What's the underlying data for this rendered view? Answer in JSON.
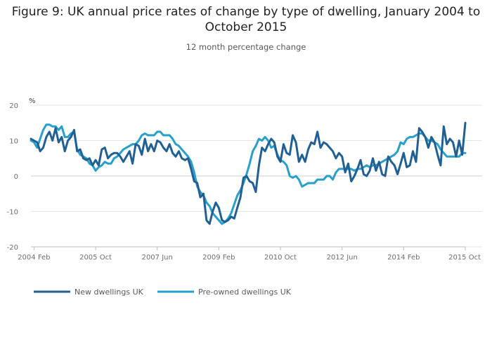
{
  "chart_data": {
    "type": "line",
    "title": "Figure 9: UK annual price rates of change by type of dwelling, January 2004 to October 2015",
    "subtitle": "12 month percentage change",
    "ylabel": "%",
    "xlabel": "",
    "ylim": [
      -20,
      20
    ],
    "yticks": [
      20,
      10,
      0,
      -10,
      -20
    ],
    "xlim": [
      2004.0,
      2015.75
    ],
    "xticks": [
      {
        "value": 2004.083,
        "label": "2004 Feb"
      },
      {
        "value": 2005.75,
        "label": "2005 Oct"
      },
      {
        "value": 2007.417,
        "label": "2007 Jun"
      },
      {
        "value": 2009.083,
        "label": "2009 Feb"
      },
      {
        "value": 2010.75,
        "label": "2010 Oct"
      },
      {
        "value": 2012.417,
        "label": "2012 Jun"
      },
      {
        "value": 2014.083,
        "label": "2014 Feb"
      },
      {
        "value": 2015.75,
        "label": "2015 Oct"
      }
    ],
    "grid": true,
    "legend": "bottom-left",
    "series": [
      {
        "name": "New dwellings UK",
        "color": "#206095",
        "points": [
          [
            2004.0,
            10.5
          ],
          [
            2004.167,
            9.5
          ],
          [
            2004.25,
            7.0
          ],
          [
            2004.333,
            8.0
          ],
          [
            2004.417,
            11.0
          ],
          [
            2004.5,
            12.5
          ],
          [
            2004.583,
            10.0
          ],
          [
            2004.667,
            13.5
          ],
          [
            2004.75,
            9.5
          ],
          [
            2004.833,
            11.0
          ],
          [
            2004.917,
            7.0
          ],
          [
            2005.0,
            10.0
          ],
          [
            2005.083,
            11.0
          ],
          [
            2005.167,
            13.0
          ],
          [
            2005.25,
            7.0
          ],
          [
            2005.333,
            7.5
          ],
          [
            2005.417,
            5.0
          ],
          [
            2005.5,
            4.5
          ],
          [
            2005.583,
            5.0
          ],
          [
            2005.667,
            3.0
          ],
          [
            2005.75,
            4.5
          ],
          [
            2005.833,
            3.0
          ],
          [
            2005.917,
            7.5
          ],
          [
            2006.0,
            8.0
          ],
          [
            2006.083,
            5.0
          ],
          [
            2006.167,
            6.0
          ],
          [
            2006.25,
            6.5
          ],
          [
            2006.333,
            6.5
          ],
          [
            2006.417,
            5.5
          ],
          [
            2006.5,
            4.0
          ],
          [
            2006.583,
            5.5
          ],
          [
            2006.667,
            7.0
          ],
          [
            2006.75,
            3.5
          ],
          [
            2006.833,
            9.0
          ],
          [
            2006.917,
            8.5
          ],
          [
            2007.0,
            6.0
          ],
          [
            2007.083,
            10.5
          ],
          [
            2007.167,
            7.0
          ],
          [
            2007.25,
            9.0
          ],
          [
            2007.333,
            7.0
          ],
          [
            2007.417,
            10.0
          ],
          [
            2007.5,
            9.5
          ],
          [
            2007.583,
            8.0
          ],
          [
            2007.667,
            7.0
          ],
          [
            2007.75,
            9.0
          ],
          [
            2007.833,
            6.5
          ],
          [
            2007.917,
            5.5
          ],
          [
            2008.0,
            7.0
          ],
          [
            2008.083,
            5.0
          ],
          [
            2008.167,
            4.5
          ],
          [
            2008.25,
            5.0
          ],
          [
            2008.333,
            2.0
          ],
          [
            2008.417,
            -1.5
          ],
          [
            2008.5,
            -2.0
          ],
          [
            2008.583,
            -6.0
          ],
          [
            2008.667,
            -5.0
          ],
          [
            2008.75,
            -12.5
          ],
          [
            2008.833,
            -13.5
          ],
          [
            2008.917,
            -10.0
          ],
          [
            2009.0,
            -7.5
          ],
          [
            2009.083,
            -9.0
          ],
          [
            2009.167,
            -12.5
          ],
          [
            2009.25,
            -13.0
          ],
          [
            2009.333,
            -12.5
          ],
          [
            2009.417,
            -11.5
          ],
          [
            2009.5,
            -12.0
          ],
          [
            2009.583,
            -9.0
          ],
          [
            2009.667,
            -6.0
          ],
          [
            2009.75,
            -0.5
          ],
          [
            2009.833,
            0.0
          ],
          [
            2009.917,
            -1.5
          ],
          [
            2010.0,
            -2.0
          ],
          [
            2010.083,
            -4.5
          ],
          [
            2010.167,
            3.0
          ],
          [
            2010.25,
            8.0
          ],
          [
            2010.333,
            7.0
          ],
          [
            2010.417,
            9.0
          ],
          [
            2010.5,
            10.5
          ],
          [
            2010.583,
            9.5
          ],
          [
            2010.667,
            5.5
          ],
          [
            2010.75,
            4.0
          ],
          [
            2010.833,
            9.0
          ],
          [
            2010.917,
            6.5
          ],
          [
            2011.0,
            6.0
          ],
          [
            2011.083,
            11.5
          ],
          [
            2011.167,
            9.5
          ],
          [
            2011.25,
            4.0
          ],
          [
            2011.333,
            6.0
          ],
          [
            2011.417,
            4.0
          ],
          [
            2011.5,
            7.5
          ],
          [
            2011.583,
            9.5
          ],
          [
            2011.667,
            9.0
          ],
          [
            2011.75,
            12.5
          ],
          [
            2011.833,
            8.0
          ],
          [
            2011.917,
            9.5
          ],
          [
            2012.0,
            9.0
          ],
          [
            2012.083,
            8.0
          ],
          [
            2012.167,
            7.0
          ],
          [
            2012.25,
            5.0
          ],
          [
            2012.333,
            6.5
          ],
          [
            2012.417,
            5.5
          ],
          [
            2012.5,
            1.0
          ],
          [
            2012.583,
            3.5
          ],
          [
            2012.667,
            -1.5
          ],
          [
            2012.75,
            0.0
          ],
          [
            2012.833,
            2.0
          ],
          [
            2012.917,
            4.5
          ],
          [
            2013.0,
            0.5
          ],
          [
            2013.083,
            0.0
          ],
          [
            2013.167,
            1.5
          ],
          [
            2013.25,
            5.0
          ],
          [
            2013.333,
            1.5
          ],
          [
            2013.417,
            4.0
          ],
          [
            2013.5,
            0.5
          ],
          [
            2013.583,
            0.0
          ],
          [
            2013.667,
            5.5
          ],
          [
            2013.75,
            4.0
          ],
          [
            2013.833,
            3.0
          ],
          [
            2013.917,
            0.5
          ],
          [
            2014.0,
            3.5
          ],
          [
            2014.083,
            6.5
          ],
          [
            2014.167,
            2.5
          ],
          [
            2014.25,
            3.0
          ],
          [
            2014.333,
            7.0
          ],
          [
            2014.417,
            4.0
          ],
          [
            2014.5,
            13.5
          ],
          [
            2014.583,
            12.5
          ],
          [
            2014.667,
            11.0
          ],
          [
            2014.75,
            8.0
          ],
          [
            2014.833,
            11.0
          ],
          [
            2014.917,
            9.5
          ],
          [
            2015.0,
            6.0
          ],
          [
            2015.083,
            3.0
          ],
          [
            2015.167,
            14.0
          ],
          [
            2015.25,
            9.0
          ],
          [
            2015.333,
            10.5
          ],
          [
            2015.417,
            9.5
          ],
          [
            2015.5,
            5.5
          ],
          [
            2015.583,
            10.0
          ],
          [
            2015.667,
            6.0
          ],
          [
            2015.75,
            15.0
          ]
        ]
      },
      {
        "name": "Pre-owned dwellings UK",
        "color": "#27a0cc",
        "points": [
          [
            2004.0,
            10.0
          ],
          [
            2004.083,
            9.5
          ],
          [
            2004.167,
            8.0
          ],
          [
            2004.25,
            10.5
          ],
          [
            2004.333,
            13.0
          ],
          [
            2004.417,
            14.5
          ],
          [
            2004.5,
            14.5
          ],
          [
            2004.583,
            14.0
          ],
          [
            2004.667,
            14.0
          ],
          [
            2004.75,
            13.0
          ],
          [
            2004.833,
            14.0
          ],
          [
            2004.917,
            11.0
          ],
          [
            2005.0,
            11.0
          ],
          [
            2005.083,
            12.0
          ],
          [
            2005.167,
            12.5
          ],
          [
            2005.25,
            7.5
          ],
          [
            2005.333,
            6.0
          ],
          [
            2005.417,
            5.5
          ],
          [
            2005.5,
            5.0
          ],
          [
            2005.583,
            3.5
          ],
          [
            2005.667,
            3.0
          ],
          [
            2005.75,
            1.5
          ],
          [
            2005.833,
            2.5
          ],
          [
            2005.917,
            3.0
          ],
          [
            2006.0,
            4.0
          ],
          [
            2006.083,
            3.5
          ],
          [
            2006.167,
            3.5
          ],
          [
            2006.25,
            5.0
          ],
          [
            2006.333,
            5.5
          ],
          [
            2006.417,
            6.5
          ],
          [
            2006.5,
            7.5
          ],
          [
            2006.583,
            8.0
          ],
          [
            2006.667,
            8.5
          ],
          [
            2006.75,
            9.0
          ],
          [
            2006.833,
            9.0
          ],
          [
            2006.917,
            10.0
          ],
          [
            2007.0,
            11.5
          ],
          [
            2007.083,
            12.0
          ],
          [
            2007.167,
            11.5
          ],
          [
            2007.25,
            11.5
          ],
          [
            2007.333,
            11.5
          ],
          [
            2007.417,
            12.5
          ],
          [
            2007.5,
            12.5
          ],
          [
            2007.583,
            11.5
          ],
          [
            2007.667,
            11.5
          ],
          [
            2007.75,
            11.5
          ],
          [
            2007.833,
            10.5
          ],
          [
            2007.917,
            9.0
          ],
          [
            2008.0,
            8.5
          ],
          [
            2008.083,
            7.5
          ],
          [
            2008.167,
            6.5
          ],
          [
            2008.25,
            5.5
          ],
          [
            2008.333,
            4.0
          ],
          [
            2008.417,
            1.0
          ],
          [
            2008.5,
            -3.0
          ],
          [
            2008.583,
            -4.5
          ],
          [
            2008.667,
            -5.5
          ],
          [
            2008.75,
            -7.5
          ],
          [
            2008.833,
            -8.5
          ],
          [
            2008.917,
            -10.5
          ],
          [
            2009.0,
            -11.5
          ],
          [
            2009.083,
            -12.5
          ],
          [
            2009.167,
            -13.5
          ],
          [
            2009.25,
            -13.0
          ],
          [
            2009.333,
            -12.0
          ],
          [
            2009.417,
            -10.5
          ],
          [
            2009.5,
            -8.0
          ],
          [
            2009.583,
            -5.5
          ],
          [
            2009.667,
            -4.0
          ],
          [
            2009.75,
            -2.0
          ],
          [
            2009.833,
            0.5
          ],
          [
            2009.917,
            3.5
          ],
          [
            2010.0,
            7.0
          ],
          [
            2010.083,
            8.5
          ],
          [
            2010.167,
            10.5
          ],
          [
            2010.25,
            10.0
          ],
          [
            2010.333,
            11.0
          ],
          [
            2010.417,
            10.0
          ],
          [
            2010.5,
            8.0
          ],
          [
            2010.583,
            8.5
          ],
          [
            2010.667,
            6.0
          ],
          [
            2010.75,
            4.5
          ],
          [
            2010.833,
            4.0
          ],
          [
            2010.917,
            3.0
          ],
          [
            2011.0,
            0.0
          ],
          [
            2011.083,
            -0.5
          ],
          [
            2011.167,
            0.0
          ],
          [
            2011.25,
            -1.0
          ],
          [
            2011.333,
            -3.0
          ],
          [
            2011.417,
            -2.5
          ],
          [
            2011.5,
            -2.0
          ],
          [
            2011.583,
            -2.0
          ],
          [
            2011.667,
            -2.0
          ],
          [
            2011.75,
            -1.0
          ],
          [
            2011.833,
            -1.0
          ],
          [
            2011.917,
            -1.0
          ],
          [
            2012.0,
            0.0
          ],
          [
            2012.083,
            0.0
          ],
          [
            2012.167,
            -1.0
          ],
          [
            2012.25,
            1.0
          ],
          [
            2012.333,
            2.0
          ],
          [
            2012.417,
            2.0
          ],
          [
            2012.5,
            2.0
          ],
          [
            2012.583,
            2.0
          ],
          [
            2012.667,
            2.0
          ],
          [
            2012.75,
            1.5
          ],
          [
            2012.833,
            2.0
          ],
          [
            2012.917,
            2.0
          ],
          [
            2013.0,
            2.5
          ],
          [
            2013.083,
            3.0
          ],
          [
            2013.167,
            2.5
          ],
          [
            2013.25,
            3.0
          ],
          [
            2013.333,
            3.0
          ],
          [
            2013.417,
            3.5
          ],
          [
            2013.5,
            4.0
          ],
          [
            2013.583,
            4.5
          ],
          [
            2013.667,
            5.0
          ],
          [
            2013.75,
            5.5
          ],
          [
            2013.833,
            6.0
          ],
          [
            2013.917,
            7.0
          ],
          [
            2014.0,
            9.5
          ],
          [
            2014.083,
            9.0
          ],
          [
            2014.167,
            10.5
          ],
          [
            2014.25,
            11.0
          ],
          [
            2014.333,
            11.0
          ],
          [
            2014.417,
            11.5
          ],
          [
            2014.5,
            12.0
          ],
          [
            2014.583,
            12.0
          ],
          [
            2014.667,
            11.0
          ],
          [
            2014.75,
            10.0
          ],
          [
            2014.833,
            10.0
          ],
          [
            2014.917,
            9.5
          ],
          [
            2015.0,
            9.0
          ],
          [
            2015.083,
            7.5
          ],
          [
            2015.167,
            6.5
          ],
          [
            2015.25,
            5.5
          ],
          [
            2015.333,
            5.5
          ],
          [
            2015.417,
            5.5
          ],
          [
            2015.5,
            5.5
          ],
          [
            2015.583,
            5.5
          ],
          [
            2015.667,
            6.5
          ],
          [
            2015.75,
            6.5
          ]
        ]
      }
    ]
  }
}
